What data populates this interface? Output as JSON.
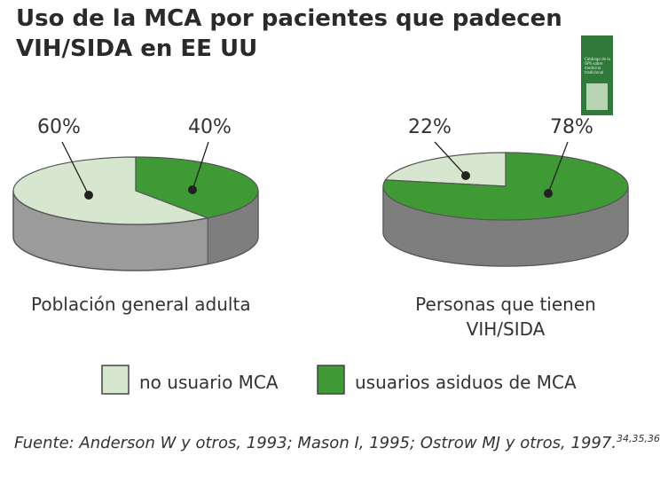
{
  "title": "Uso de la MCA por pacientes que padecen VIH/SIDA en EE UU",
  "chart_data": [
    {
      "type": "pie",
      "caption": [
        "Población general adulta"
      ],
      "slices": [
        {
          "label": "no usuario MCA",
          "value": 60,
          "display": "60%"
        },
        {
          "label": "usuarios asiduos de MCA",
          "value": 40,
          "display": "40%"
        }
      ]
    },
    {
      "type": "pie",
      "caption": [
        "Personas que tienen",
        "VIH/SIDA"
      ],
      "slices": [
        {
          "label": "no usuario MCA",
          "value": 22,
          "display": "22%"
        },
        {
          "label": "usuarios asiduos de MCA",
          "value": 78,
          "display": "78%"
        }
      ]
    }
  ],
  "legend": [
    {
      "label": "no usuario MCA",
      "color": "#d7e6cf"
    },
    {
      "label": "usuarios asiduos de MCA",
      "color": "#3f9a36"
    }
  ],
  "colors": {
    "light": "#d7e6cf",
    "green": "#3f9a36",
    "side": "#9b9b9b",
    "side_dark": "#7e7e7e",
    "outline": "#555555"
  },
  "source": {
    "text": "Fuente: Anderson W y otros, 1993; Mason I, 1995; Ostrow MJ y otros, 1997.",
    "refs": "34,35,36"
  },
  "cover_text": "Catálogo de la OPS sobre medicina tradicional"
}
